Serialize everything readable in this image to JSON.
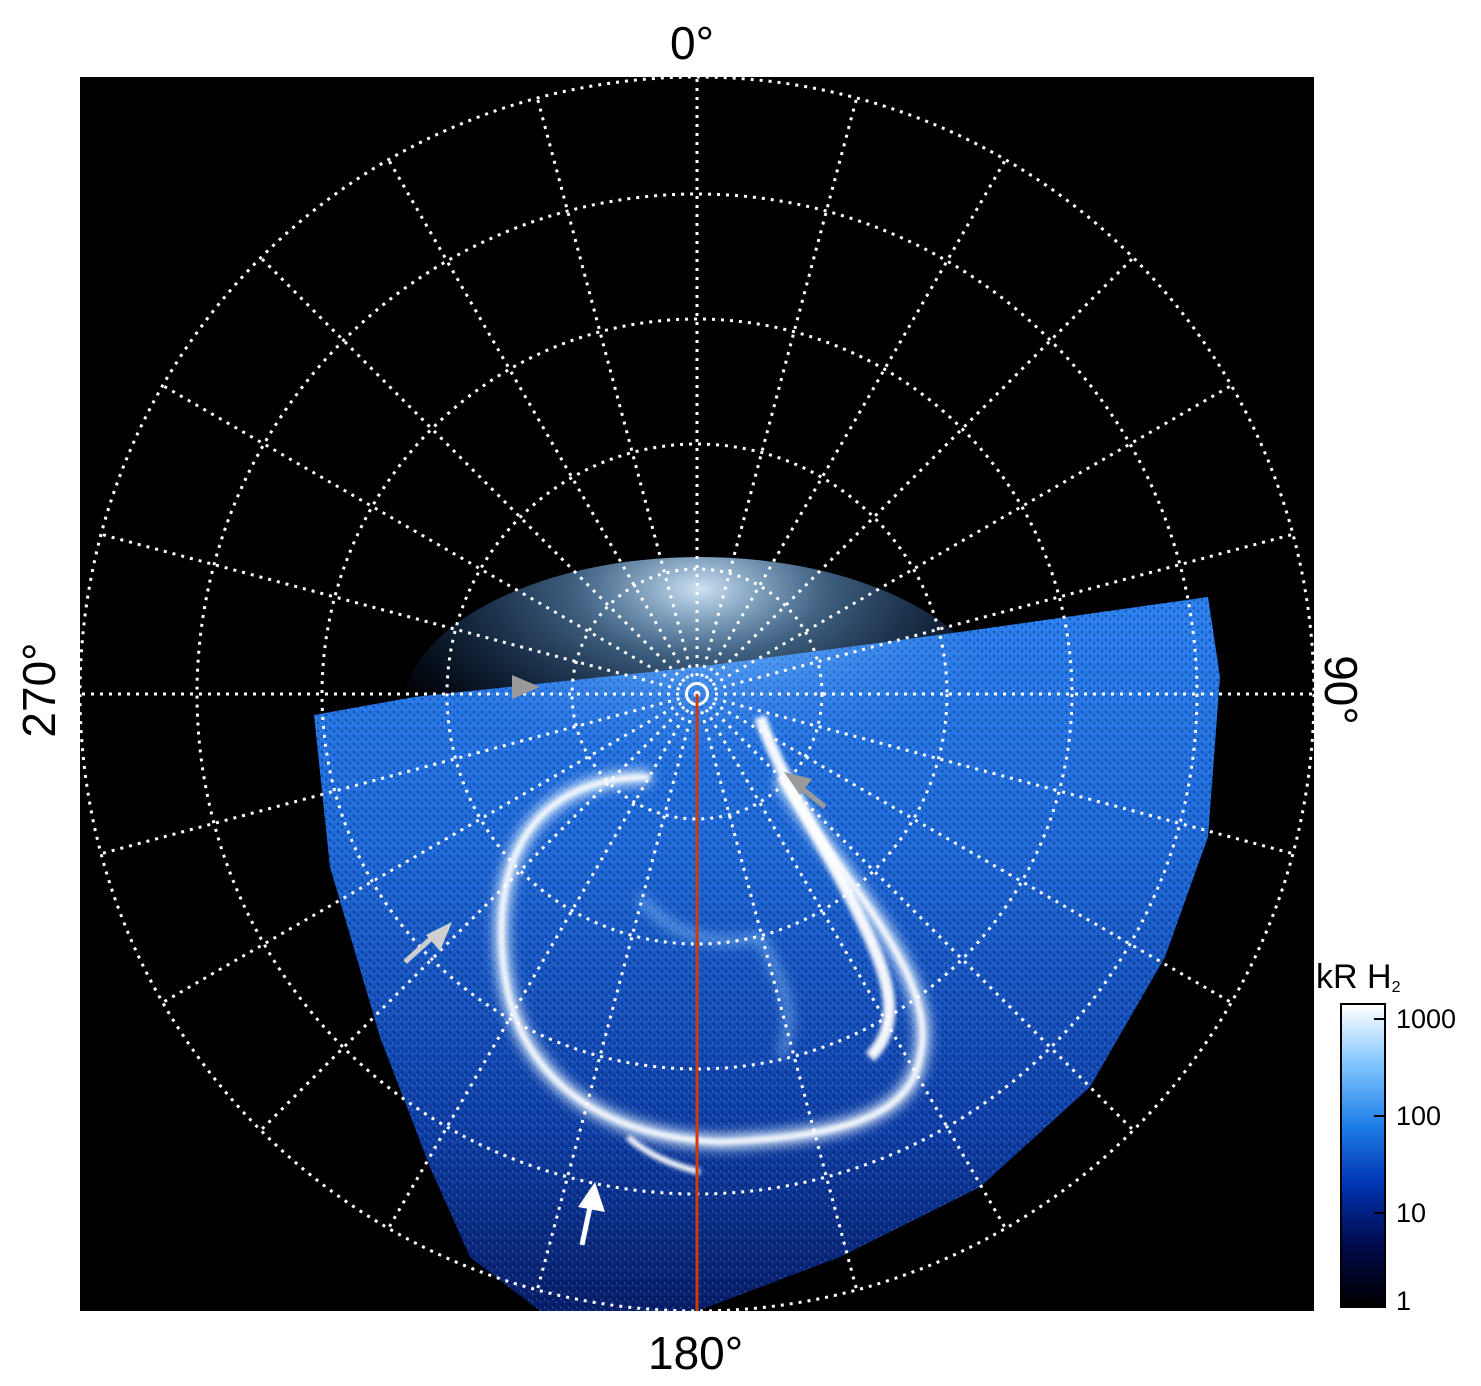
{
  "azimuth_labels": {
    "top": "0°",
    "right": "90°",
    "bottom": "180°",
    "left": "270°"
  },
  "colorbar": {
    "title_main": "kR H",
    "title_sub": "2",
    "ticks": [
      "1000",
      "100",
      "10",
      "1"
    ],
    "colors": [
      "#000000",
      "#000a4a",
      "#0033b0",
      "#1f7fe8",
      "#7fc4ff",
      "#ffffff"
    ]
  },
  "colors": {
    "background": "#000000",
    "grid": "#ffffff",
    "meridian": "#d03a10",
    "arrow_gray": "#9a9a9a",
    "arrow_white": "#ffffff"
  }
}
